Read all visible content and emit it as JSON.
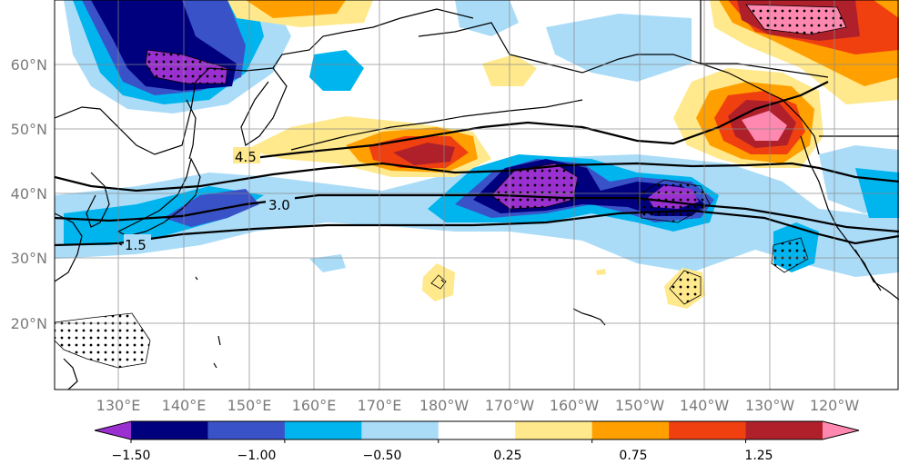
{
  "map": {
    "region": "North Pacific",
    "projection": "PlateCarree",
    "lon_range": [
      122,
      250
    ],
    "lat_range": [
      10,
      70
    ],
    "grid": true,
    "x_ticks": [
      "130°E",
      "140°E",
      "150°E",
      "160°E",
      "170°E",
      "180°W",
      "170°W",
      "160°W",
      "150°W",
      "140°W",
      "130°W",
      "120°W"
    ],
    "y_ticks": [
      "60°N",
      "50°N",
      "40°N",
      "30°N",
      "20°N"
    ],
    "contour_labels": [
      "4.5",
      "3.0",
      "1.5"
    ],
    "stippling": "dots mark significant regions"
  },
  "colorbar": {
    "tick_labels": [
      "−1.50",
      "−1.00",
      "−0.50",
      "0.25",
      "0.75",
      "1.25"
    ],
    "extend": "both",
    "bins": [
      {
        "color": "#9b30d0"
      },
      {
        "color": "#00007f"
      },
      {
        "color": "#3a52c8"
      },
      {
        "color": "#00b4ee"
      },
      {
        "color": "#aadcf8"
      },
      {
        "color": "#ffffff"
      },
      {
        "color": "#ffe98c"
      },
      {
        "color": "#ffa000"
      },
      {
        "color": "#f04010"
      },
      {
        "color": "#b0202a"
      },
      {
        "color": "#ff88b0"
      }
    ]
  }
}
